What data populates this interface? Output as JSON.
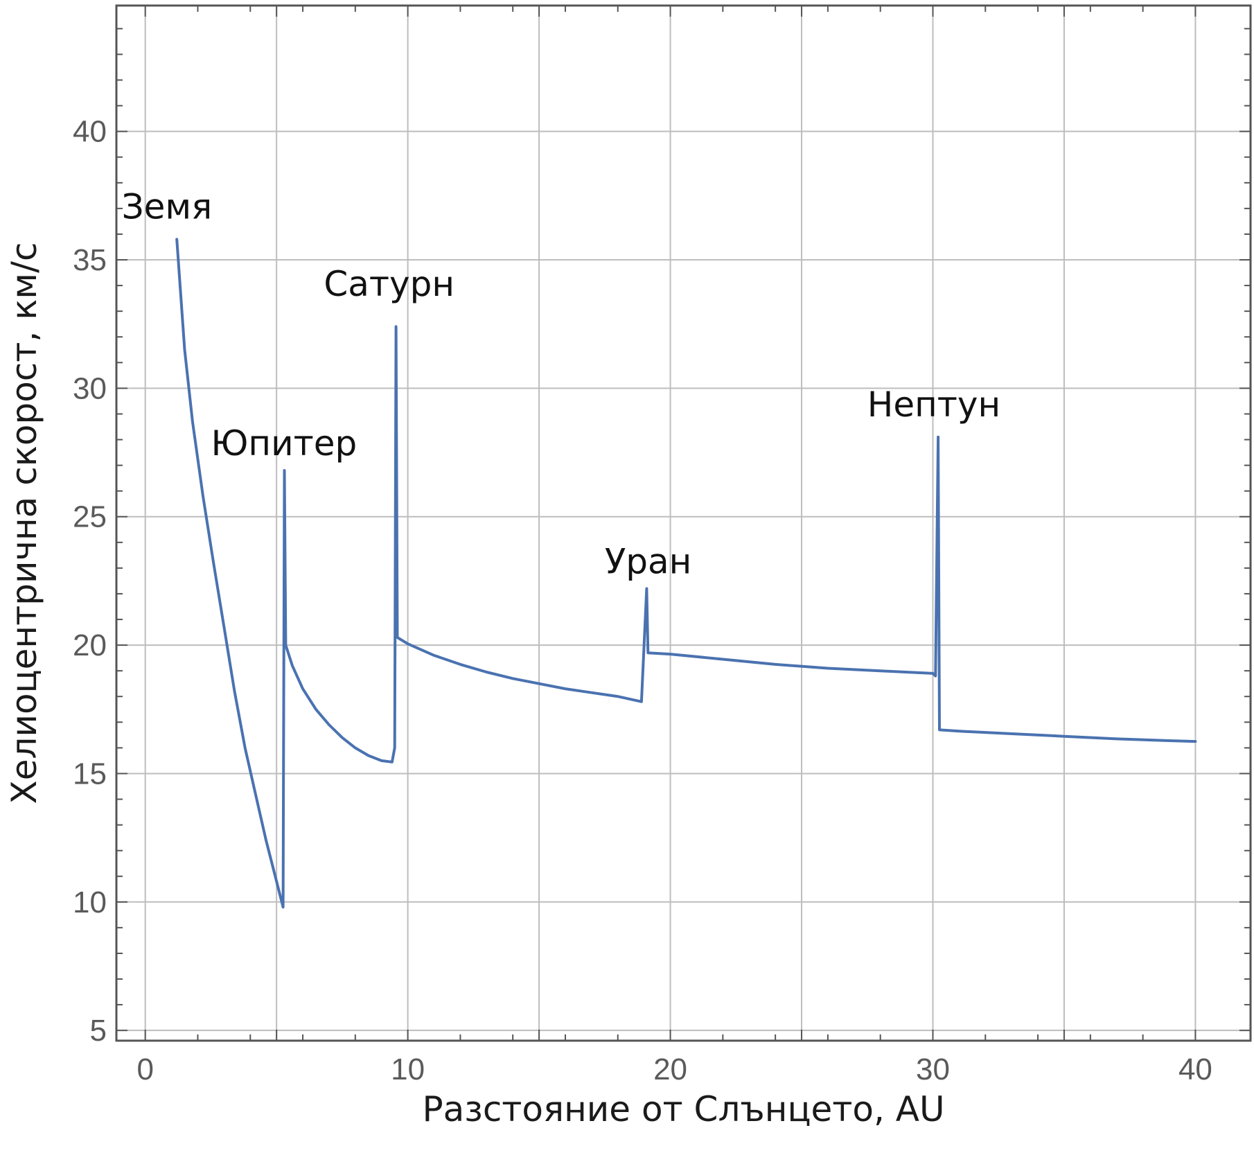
{
  "chart_data": {
    "type": "line",
    "title": "",
    "xlabel": "Разстояние от Слънцето, AU",
    "ylabel": "Хелиоцентрична скорост, км/с",
    "xlim": [
      -1.1,
      42.1
    ],
    "ylim": [
      4.6,
      44.9
    ],
    "xticks": [
      0,
      10,
      20,
      30,
      40
    ],
    "yticks": [
      5,
      10,
      15,
      20,
      25,
      30,
      35,
      40
    ],
    "grid": true,
    "legend": "none",
    "colors": {
      "series": "#4a72b0",
      "grid": "#bdbdbd",
      "frame": "#555555"
    },
    "series": [
      {
        "values": [
          [
            1.2,
            35.8
          ],
          [
            1.5,
            31.5
          ],
          [
            1.8,
            28.7
          ],
          [
            2.2,
            25.8
          ],
          [
            2.6,
            23.2
          ],
          [
            3.0,
            20.7
          ],
          [
            3.4,
            18.2
          ],
          [
            3.8,
            16.0
          ],
          [
            4.2,
            14.2
          ],
          [
            4.6,
            12.4
          ],
          [
            5.0,
            10.8
          ],
          [
            5.2,
            10.0
          ],
          [
            5.25,
            9.8
          ],
          [
            5.3,
            26.8
          ],
          [
            5.35,
            20.0
          ],
          [
            5.6,
            19.2
          ],
          [
            6.0,
            18.3
          ],
          [
            6.5,
            17.5
          ],
          [
            7.0,
            16.9
          ],
          [
            7.5,
            16.4
          ],
          [
            8.0,
            16.0
          ],
          [
            8.5,
            15.7
          ],
          [
            9.0,
            15.5
          ],
          [
            9.4,
            15.45
          ],
          [
            9.5,
            16.0
          ],
          [
            9.55,
            32.4
          ],
          [
            9.6,
            20.3
          ],
          [
            10.0,
            20.05
          ],
          [
            11.0,
            19.6
          ],
          [
            12.0,
            19.25
          ],
          [
            13.0,
            18.95
          ],
          [
            14.0,
            18.7
          ],
          [
            15.0,
            18.5
          ],
          [
            16.0,
            18.3
          ],
          [
            17.0,
            18.15
          ],
          [
            18.0,
            18.0
          ],
          [
            18.9,
            17.8
          ],
          [
            19.1,
            22.2
          ],
          [
            19.15,
            19.7
          ],
          [
            20.0,
            19.65
          ],
          [
            22.0,
            19.45
          ],
          [
            24.0,
            19.25
          ],
          [
            26.0,
            19.1
          ],
          [
            28.0,
            19.0
          ],
          [
            30.0,
            18.9
          ],
          [
            30.1,
            18.8
          ],
          [
            30.2,
            28.1
          ],
          [
            30.25,
            16.7
          ],
          [
            31.0,
            16.65
          ],
          [
            33.0,
            16.55
          ],
          [
            35.0,
            16.45
          ],
          [
            37.0,
            16.35
          ],
          [
            39.0,
            16.28
          ],
          [
            40.0,
            16.25
          ]
        ]
      }
    ],
    "annotations": [
      {
        "text": "Земя",
        "x": -0.9,
        "y": 36.6
      },
      {
        "text": "Юпитер",
        "x": 2.5,
        "y": 27.4
      },
      {
        "text": "Сатурн",
        "x": 6.8,
        "y": 33.6
      },
      {
        "text": "Уран",
        "x": 17.5,
        "y": 22.8
      },
      {
        "text": "Нептун",
        "x": 27.5,
        "y": 28.9
      }
    ]
  }
}
